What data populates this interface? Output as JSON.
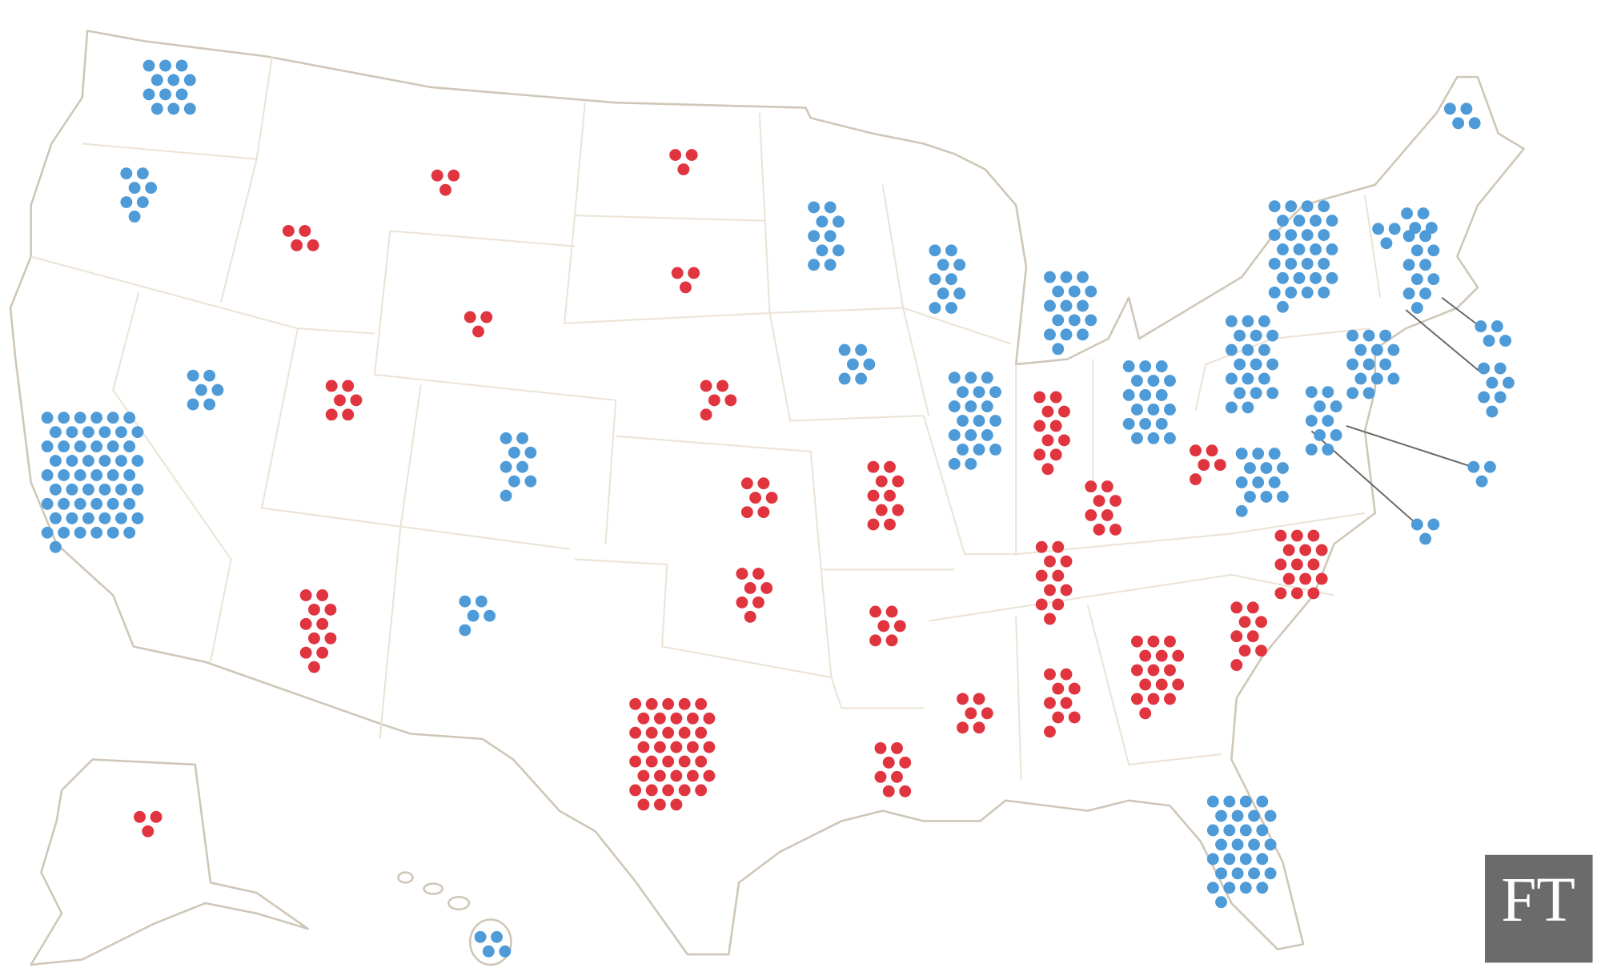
{
  "logo": "FT",
  "states": [
    {
      "votes": 12,
      "color": "#4e9bd8"
    },
    {
      "votes": 7,
      "color": "#4e9bd8"
    },
    {
      "votes": 55,
      "color": "#4e9bd8"
    },
    {
      "votes": 6,
      "color": "#4e9bd8"
    },
    {
      "votes": 4,
      "color": "#e0353f"
    },
    {
      "votes": 3,
      "color": "#e0353f"
    },
    {
      "votes": 3,
      "color": "#e0353f"
    },
    {
      "votes": 6,
      "color": "#e0353f"
    },
    {
      "votes": 11,
      "color": "#e0353f"
    },
    {
      "votes": 9,
      "color": "#4e9bd8"
    },
    {
      "votes": 5,
      "color": "#4e9bd8"
    },
    {
      "votes": 3,
      "color": "#e0353f"
    },
    {
      "votes": 3,
      "color": "#e0353f"
    },
    {
      "votes": 5,
      "color": "#e0353f"
    },
    {
      "votes": 6,
      "color": "#e0353f"
    },
    {
      "votes": 7,
      "color": "#e0353f"
    },
    {
      "votes": 38,
      "color": "#e0353f"
    },
    {
      "votes": 10,
      "color": "#4e9bd8"
    },
    {
      "votes": 6,
      "color": "#4e9bd8"
    },
    {
      "votes": 10,
      "color": "#e0353f"
    },
    {
      "votes": 6,
      "color": "#e0353f"
    },
    {
      "votes": 8,
      "color": "#e0353f"
    },
    {
      "votes": 10,
      "color": "#4e9bd8"
    },
    {
      "votes": 20,
      "color": "#4e9bd8"
    },
    {
      "votes": 16,
      "color": "#4e9bd8"
    },
    {
      "votes": 11,
      "color": "#e0353f"
    },
    {
      "votes": 18,
      "color": "#4e9bd8"
    },
    {
      "votes": 8,
      "color": "#e0353f"
    },
    {
      "votes": 11,
      "color": "#e0353f"
    },
    {
      "votes": 6,
      "color": "#e0353f"
    },
    {
      "votes": 9,
      "color": "#e0353f"
    },
    {
      "votes": 16,
      "color": "#e0353f"
    },
    {
      "votes": 29,
      "color": "#4e9bd8"
    },
    {
      "votes": 9,
      "color": "#e0353f"
    },
    {
      "votes": 15,
      "color": "#e0353f"
    },
    {
      "votes": 13,
      "color": "#4e9bd8"
    },
    {
      "votes": 5,
      "color": "#e0353f"
    },
    {
      "votes": 20,
      "color": "#4e9bd8"
    },
    {
      "votes": 29,
      "color": "#4e9bd8"
    },
    {
      "votes": 3,
      "color": "#4e9bd8"
    },
    {
      "votes": 4,
      "color": "#4e9bd8"
    },
    {
      "votes": 4,
      "color": "#4e9bd8"
    },
    {
      "votes": 11,
      "color": "#4e9bd8"
    },
    {
      "votes": 4,
      "color": "#4e9bd8"
    },
    {
      "votes": 7,
      "color": "#4e9bd8"
    },
    {
      "votes": 14,
      "color": "#4e9bd8"
    },
    {
      "votes": 3,
      "color": "#4e9bd8"
    },
    {
      "votes": 10,
      "color": "#4e9bd8"
    },
    {
      "votes": 3,
      "color": "#4e9bd8"
    },
    {
      "votes": 3,
      "color": "#e0353f"
    },
    {
      "votes": 4,
      "color": "#4e9bd8"
    }
  ]
}
